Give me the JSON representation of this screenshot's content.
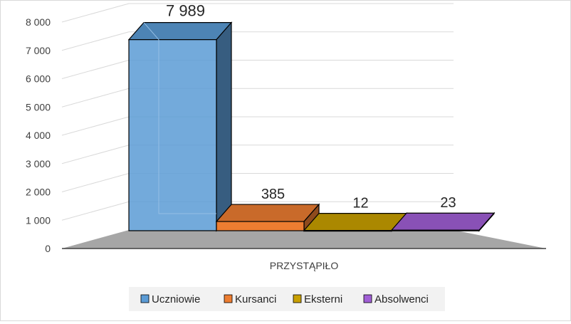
{
  "chart_data": {
    "type": "bar",
    "view": "3d-clustered-column",
    "categories": [
      "PRZYSTĄPIŁO"
    ],
    "series": [
      {
        "name": "Uczniowie",
        "values": [
          7989
        ],
        "value_label": "7 989",
        "color": "#5b9bd5"
      },
      {
        "name": "Kursanci",
        "values": [
          385
        ],
        "value_label": "385",
        "color": "#ed7d31"
      },
      {
        "name": "Eksterni",
        "values": [
          12
        ],
        "value_label": "12",
        "color": "#c9a000"
      },
      {
        "name": "Absolwenci",
        "values": [
          23
        ],
        "value_label": "23",
        "color": "#a15fd6"
      }
    ],
    "y_ticks": [
      "0",
      "1 000",
      "2 000",
      "3 000",
      "4 000",
      "5 000",
      "6 000",
      "7 000",
      "8 000"
    ],
    "ylim": [
      0,
      8000
    ],
    "grid": true,
    "legend_position": "bottom"
  }
}
